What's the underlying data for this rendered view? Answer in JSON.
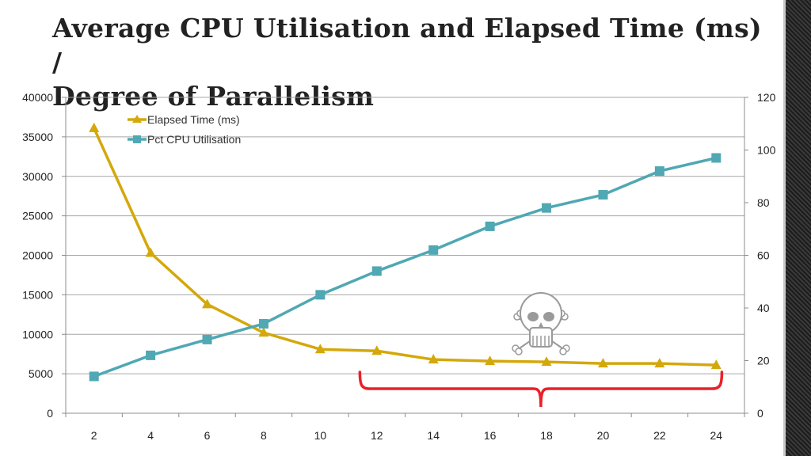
{
  "slide": {
    "title_line1": "Average CPU Utilisation and Elapsed Time (ms) /",
    "title_line2": "Degree of Parallelism"
  },
  "chart_data": {
    "type": "line",
    "x": [
      2,
      4,
      6,
      8,
      10,
      12,
      14,
      16,
      18,
      20,
      22,
      24
    ],
    "xticks": [
      2,
      4,
      6,
      8,
      10,
      12,
      14,
      16,
      18,
      20,
      22,
      24
    ],
    "y_left_ticks": [
      0,
      5000,
      10000,
      15000,
      20000,
      25000,
      30000,
      35000,
      40000
    ],
    "y_left_lim": [
      0,
      40000
    ],
    "y_right_ticks": [
      0,
      20,
      40,
      60,
      80,
      100,
      120
    ],
    "y_right_lim": [
      0,
      120
    ],
    "grid": "horizontal",
    "legend_position": "top-left",
    "series": [
      {
        "name": "Elapsed Time (ms)",
        "axis": "left",
        "marker": "triangle",
        "color": "#d4a80b",
        "values": [
          36100,
          20300,
          13800,
          10200,
          8100,
          7900,
          6800,
          6600,
          6500,
          6300,
          6300,
          6100
        ]
      },
      {
        "name": "Pct CPU Utilisation",
        "axis": "right",
        "marker": "square",
        "color": "#4fa8b3",
        "values": [
          14,
          22,
          28,
          34,
          45,
          54,
          62,
          71,
          78,
          83,
          92,
          97
        ]
      }
    ],
    "annotations": [
      {
        "type": "brace",
        "color": "#e8212a",
        "x_from": 11.4,
        "x_to": 24.2
      },
      {
        "type": "skull-crossbones",
        "color": "#9a9a9a",
        "near_x": 18
      }
    ]
  }
}
